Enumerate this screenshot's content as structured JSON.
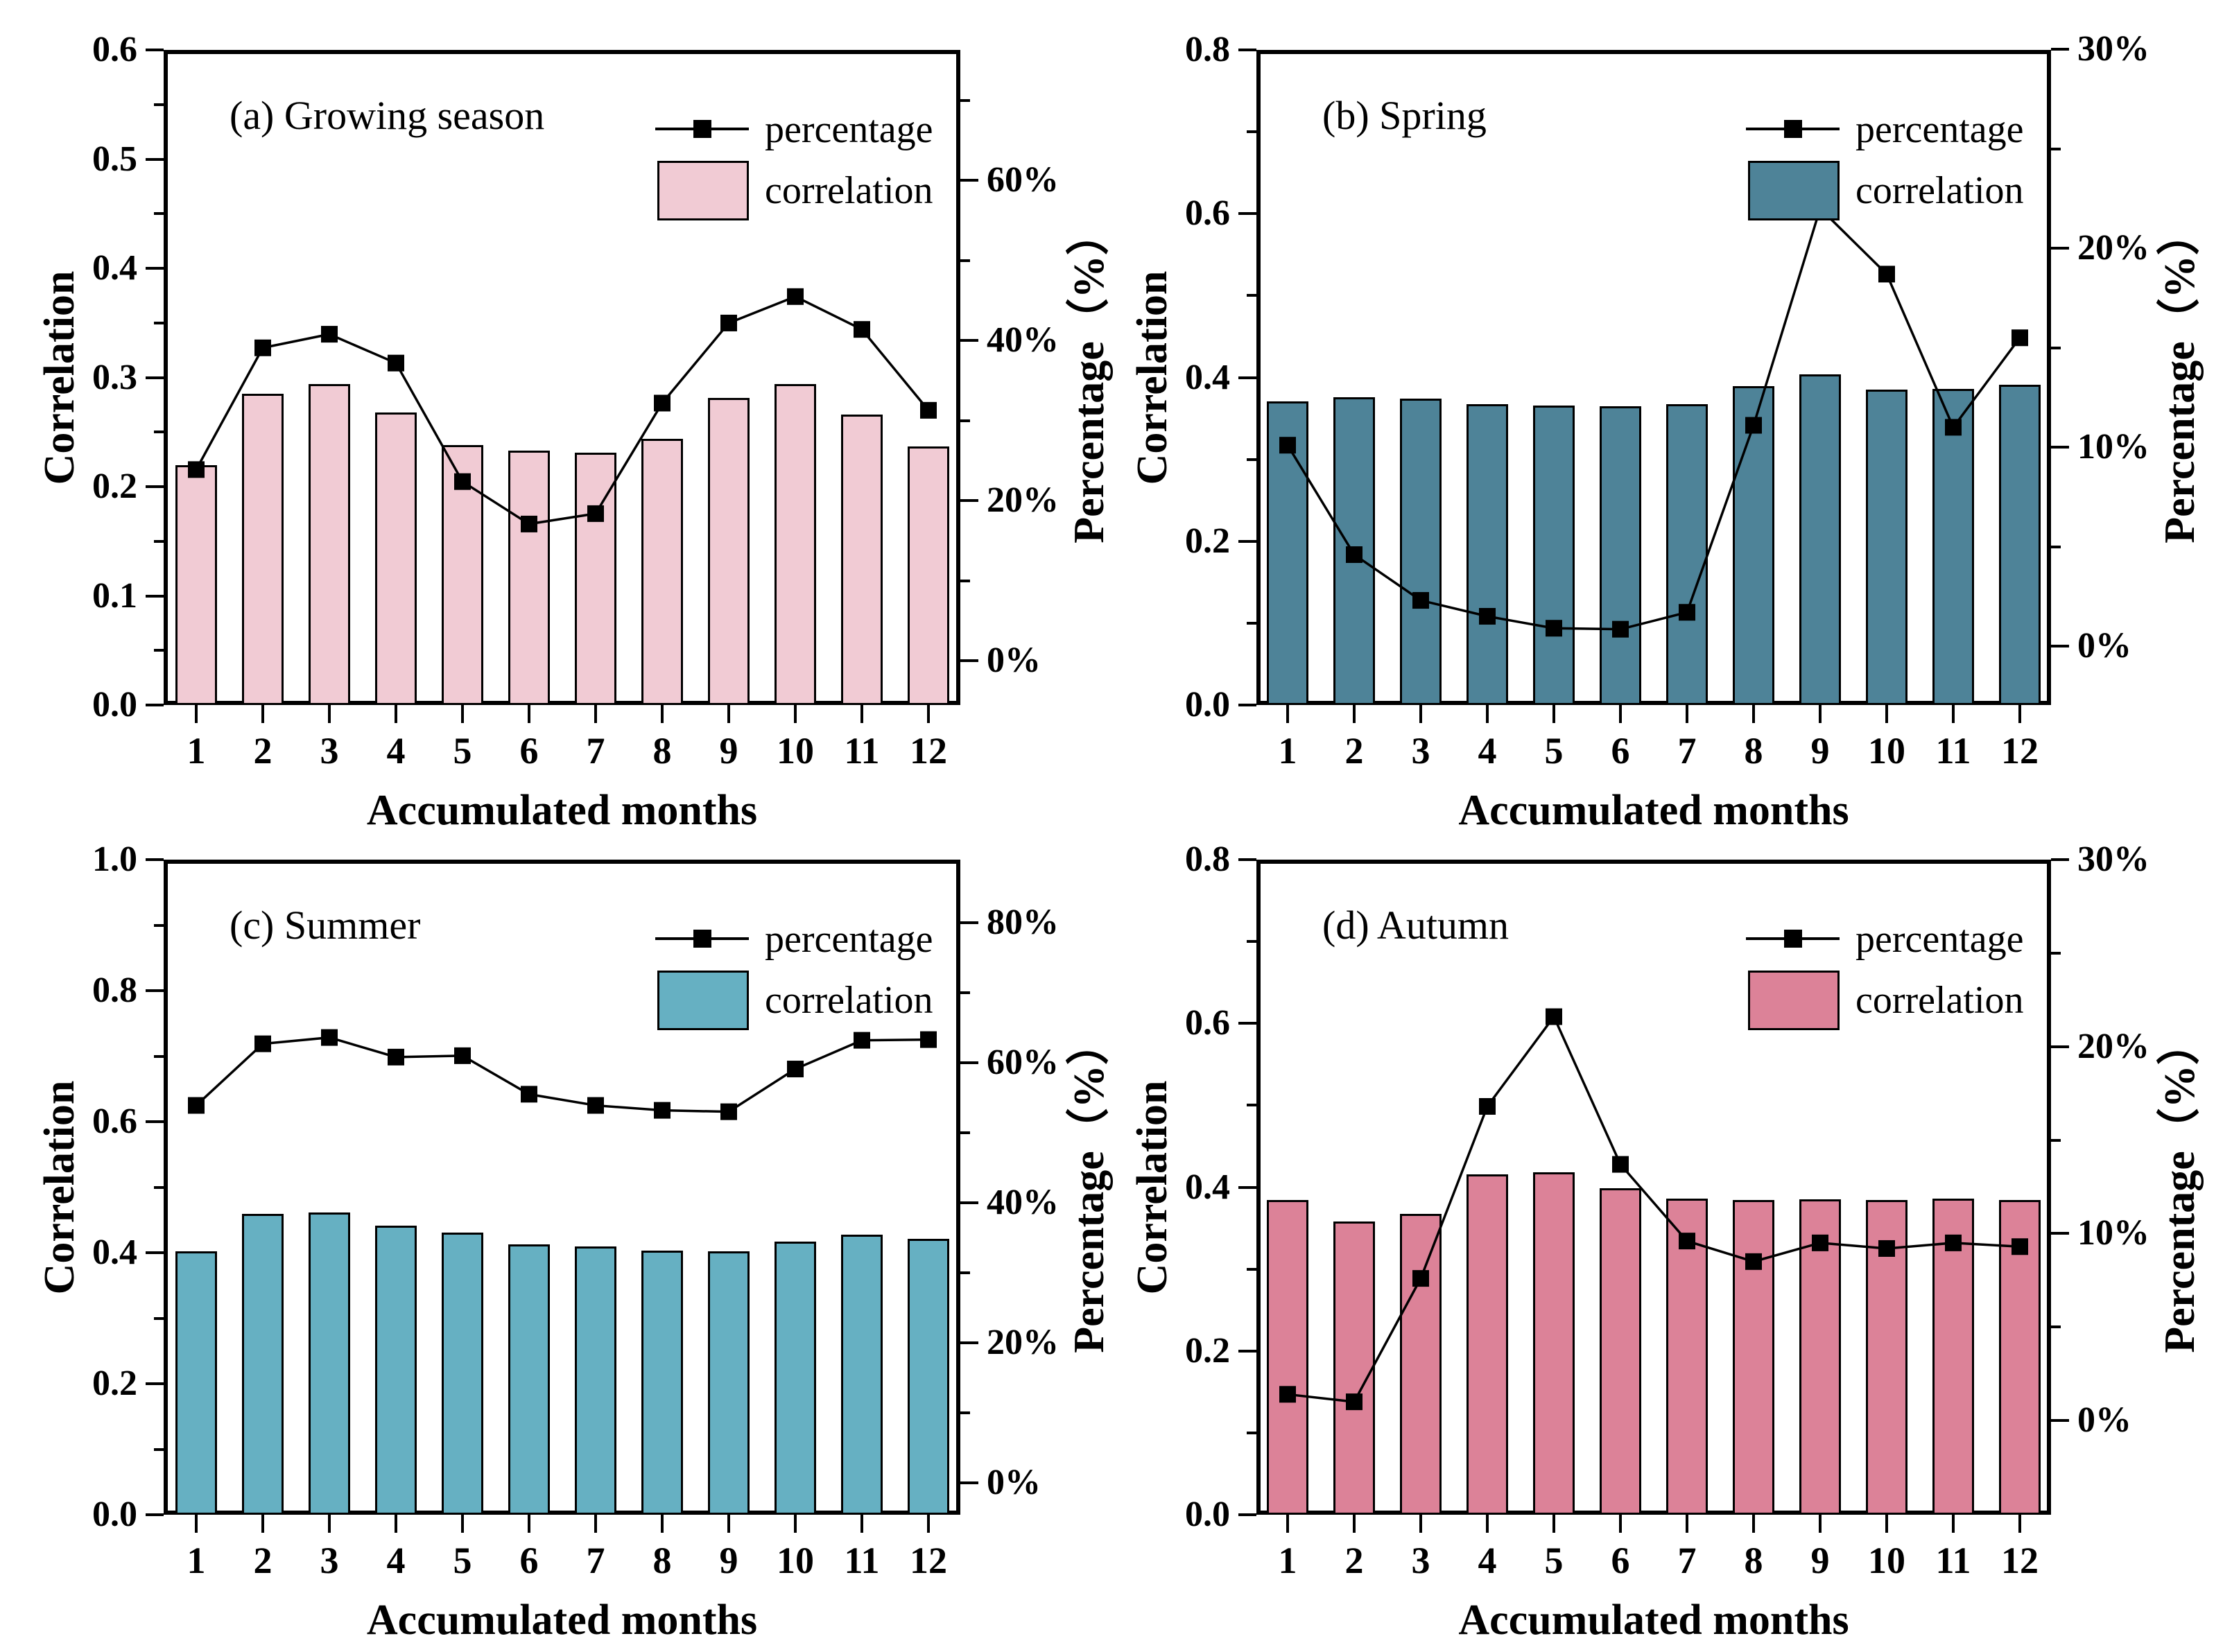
{
  "figure": {
    "background": "#ffffff",
    "frame_color": "#000000",
    "line_color": "#000000"
  },
  "xlabel": "Accumulated months",
  "legend": {
    "percentage_label": "percentage",
    "correlation_label": "correlation"
  },
  "chart_data": [
    {
      "panel": "a",
      "type": "bar+line",
      "title": "(a) Growing season",
      "bar_color": "#f1cbd4",
      "categories": [
        1,
        2,
        3,
        4,
        5,
        6,
        7,
        8,
        9,
        10,
        11,
        12
      ],
      "series": [
        {
          "name": "correlation",
          "type": "bar",
          "axis": "left",
          "values": [
            0.22,
            0.285,
            0.294,
            0.268,
            0.238,
            0.233,
            0.231,
            0.244,
            0.281,
            0.294,
            0.266,
            0.237
          ]
        },
        {
          "name": "percentage",
          "type": "line",
          "axis": "right",
          "values": [
            23.9,
            39.1,
            40.8,
            37.2,
            22.4,
            17.1,
            18.4,
            32.2,
            42.2,
            45.5,
            41.4,
            31.3
          ]
        }
      ],
      "left_axis": {
        "label": "Correlation",
        "min": 0,
        "max": 0.6,
        "major_ticks": [
          0,
          0.1,
          0.2,
          0.3,
          0.4,
          0.5,
          0.6
        ],
        "minor_ticks": [
          0.05,
          0.15,
          0.25,
          0.35,
          0.45,
          0.55
        ],
        "decimals": 1
      },
      "right_axis": {
        "label": "Percentage（%）",
        "min": -5.5,
        "max": 76.3,
        "major_ticks": [
          0,
          20,
          40,
          60
        ],
        "minor_ticks": [
          10,
          30,
          50,
          70
        ],
        "suffix": "%"
      },
      "grid": false,
      "legend_position": "top-right-inside"
    },
    {
      "panel": "b",
      "type": "bar+line",
      "title": "(b) Spring",
      "bar_color": "#4e8398",
      "categories": [
        1,
        2,
        3,
        4,
        5,
        6,
        7,
        8,
        9,
        10,
        11,
        12
      ],
      "series": [
        {
          "name": "correlation",
          "type": "bar",
          "axis": "left",
          "values": [
            0.371,
            0.376,
            0.374,
            0.367,
            0.366,
            0.365,
            0.367,
            0.389,
            0.404,
            0.385,
            0.386,
            0.391
          ]
        },
        {
          "name": "percentage",
          "type": "line",
          "axis": "right",
          "values": [
            10.1,
            4.6,
            2.3,
            1.5,
            0.9,
            0.85,
            1.7,
            11.1,
            22.0,
            18.7,
            11.0,
            15.5
          ]
        }
      ],
      "left_axis": {
        "label": "Correlation",
        "min": 0,
        "max": 0.8,
        "major_ticks": [
          0,
          0.2,
          0.4,
          0.6,
          0.8
        ],
        "minor_ticks": [
          0.1,
          0.3,
          0.5,
          0.7
        ],
        "decimals": 1
      },
      "right_axis": {
        "label": "Percentage（%）",
        "min": -2.96,
        "max": 29.97,
        "major_ticks": [
          0,
          10,
          20,
          30
        ],
        "minor_ticks": [
          5,
          15,
          25
        ],
        "suffix": "%"
      },
      "grid": false,
      "legend_position": "top-right-inside"
    },
    {
      "panel": "c",
      "type": "bar+line",
      "title": "(c) Summer",
      "bar_color": "#66b0c2",
      "categories": [
        1,
        2,
        3,
        4,
        5,
        6,
        7,
        8,
        9,
        10,
        11,
        12
      ],
      "series": [
        {
          "name": "correlation",
          "type": "bar",
          "axis": "left",
          "values": [
            0.402,
            0.459,
            0.461,
            0.441,
            0.431,
            0.413,
            0.409,
            0.403,
            0.402,
            0.417,
            0.427,
            0.421
          ]
        },
        {
          "name": "percentage",
          "type": "line",
          "axis": "right",
          "values": [
            53.9,
            62.7,
            63.6,
            60.8,
            61.0,
            55.5,
            53.9,
            53.2,
            53.0,
            59.1,
            63.2,
            63.3
          ]
        }
      ],
      "left_axis": {
        "label": "Correlation",
        "min": 0,
        "max": 1.0,
        "major_ticks": [
          0,
          0.2,
          0.4,
          0.6,
          0.8,
          1.0
        ],
        "minor_ticks": [
          0.1,
          0.3,
          0.5,
          0.7,
          0.9
        ],
        "decimals": 1
      },
      "right_axis": {
        "label": "Percentage（%）",
        "min": -4.55,
        "max": 89.0,
        "major_ticks": [
          0,
          20,
          40,
          60,
          80
        ],
        "minor_ticks": [
          10,
          30,
          50,
          70
        ],
        "suffix": "%"
      },
      "grid": false,
      "legend_position": "top-right-inside"
    },
    {
      "panel": "d",
      "type": "bar+line",
      "title": "(d) Autumn",
      "bar_color": "#dc8298",
      "categories": [
        1,
        2,
        3,
        4,
        5,
        6,
        7,
        8,
        9,
        10,
        11,
        12
      ],
      "series": [
        {
          "name": "correlation",
          "type": "bar",
          "axis": "left",
          "values": [
            0.384,
            0.358,
            0.367,
            0.416,
            0.418,
            0.399,
            0.386,
            0.384,
            0.385,
            0.384,
            0.386,
            0.384
          ]
        },
        {
          "name": "percentage",
          "type": "line",
          "axis": "right",
          "values": [
            1.4,
            1.0,
            7.6,
            16.8,
            21.6,
            13.7,
            9.6,
            8.5,
            9.5,
            9.2,
            9.5,
            9.3
          ]
        }
      ],
      "left_axis": {
        "label": "Correlation",
        "min": 0,
        "max": 0.8,
        "major_ticks": [
          0,
          0.2,
          0.4,
          0.6,
          0.8
        ],
        "minor_ticks": [
          0.1,
          0.3,
          0.5,
          0.7
        ],
        "decimals": 1
      },
      "right_axis": {
        "label": "Percentage（%）",
        "min": -5.04,
        "max": 30.0,
        "major_ticks": [
          0,
          10,
          20,
          30
        ],
        "minor_ticks": [
          5,
          15,
          25
        ],
        "suffix": "%"
      },
      "grid": false,
      "legend_position": "top-right-inside"
    }
  ]
}
